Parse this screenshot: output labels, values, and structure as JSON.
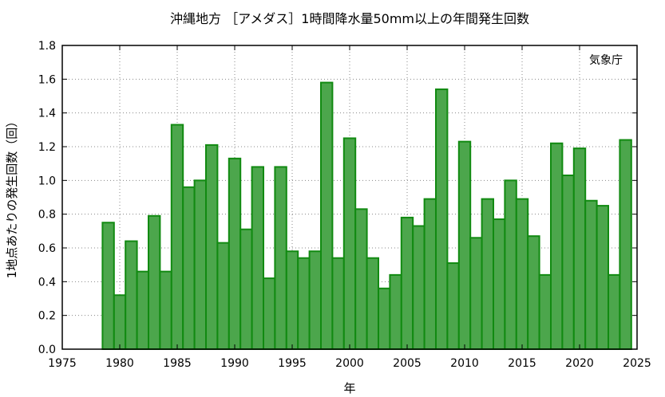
{
  "colors": {
    "bar_fill": "#4ca64c",
    "bar_stroke": "#118a11"
  },
  "chart_data": {
    "type": "bar",
    "title": "沖縄地方 ［アメダス］1時間降水量50mm以上の年間発生回数",
    "xlabel": "年",
    "ylabel": "1地点あたりの発生回数（回）",
    "annotation": "気象庁",
    "xlim": [
      1975,
      2025
    ],
    "ylim": [
      0,
      1.8
    ],
    "x_ticks": [
      1975,
      1980,
      1985,
      1990,
      1995,
      2000,
      2005,
      2010,
      2015,
      2020,
      2025
    ],
    "y_ticks": [
      "0.0",
      "0.2",
      "0.4",
      "0.6",
      "0.8",
      "1.0",
      "1.2",
      "1.4",
      "1.6",
      "1.8"
    ],
    "grid": true,
    "categories": [
      1979,
      1980,
      1981,
      1982,
      1983,
      1984,
      1985,
      1986,
      1987,
      1988,
      1989,
      1990,
      1991,
      1992,
      1993,
      1994,
      1995,
      1996,
      1997,
      1998,
      1999,
      2000,
      2001,
      2002,
      2003,
      2004,
      2005,
      2006,
      2007,
      2008,
      2009,
      2010,
      2011,
      2012,
      2013,
      2014,
      2015,
      2016,
      2017,
      2018,
      2019,
      2020,
      2021,
      2022,
      2023,
      2024
    ],
    "values": [
      0.75,
      0.32,
      0.64,
      0.46,
      0.79,
      0.46,
      1.33,
      0.96,
      1.0,
      1.21,
      0.63,
      1.13,
      0.71,
      1.08,
      0.42,
      1.08,
      0.58,
      0.54,
      0.58,
      1.58,
      0.54,
      1.25,
      0.83,
      0.54,
      0.36,
      0.44,
      0.78,
      0.73,
      0.89,
      1.54,
      0.51,
      1.23,
      0.66,
      0.89,
      0.77,
      1.0,
      0.89,
      0.67,
      0.44,
      1.22,
      1.03,
      1.19,
      0.88,
      0.85,
      0.44,
      1.24
    ]
  }
}
